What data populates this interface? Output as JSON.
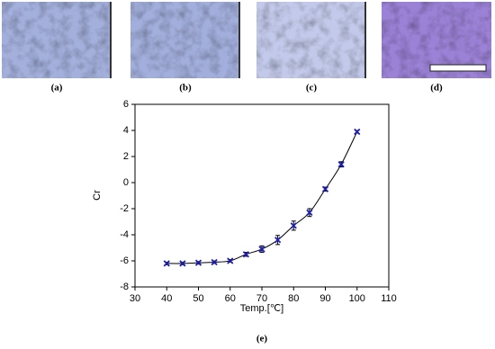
{
  "panel_labels": [
    "(a)",
    "(b)",
    "(c)",
    "(d)"
  ],
  "caption": "(e)",
  "chart_data": {
    "type": "scatter",
    "xlabel": "Temp.[℃]",
    "ylabel": "Cr",
    "x": [
      40,
      45,
      50,
      55,
      60,
      65,
      70,
      75,
      80,
      85,
      90,
      95,
      100
    ],
    "values": [
      -6.2,
      -6.2,
      -6.15,
      -6.1,
      -6.0,
      -5.5,
      -5.1,
      -4.4,
      -3.3,
      -2.3,
      -0.5,
      1.4,
      3.9
    ],
    "errors": [
      0.1,
      0.1,
      0.1,
      0.1,
      0.1,
      0.15,
      0.25,
      0.35,
      0.35,
      0.3,
      0.15,
      0.2,
      0.1
    ],
    "color": "#1f1fb4",
    "fit_line": true,
    "xlim": [
      30,
      110
    ],
    "xticks": [
      30,
      40,
      50,
      60,
      70,
      80,
      90,
      100,
      110
    ],
    "ylim": [
      -8,
      6
    ],
    "yticks": [
      -8,
      -6,
      -4,
      -2,
      0,
      2,
      4,
      6
    ]
  }
}
